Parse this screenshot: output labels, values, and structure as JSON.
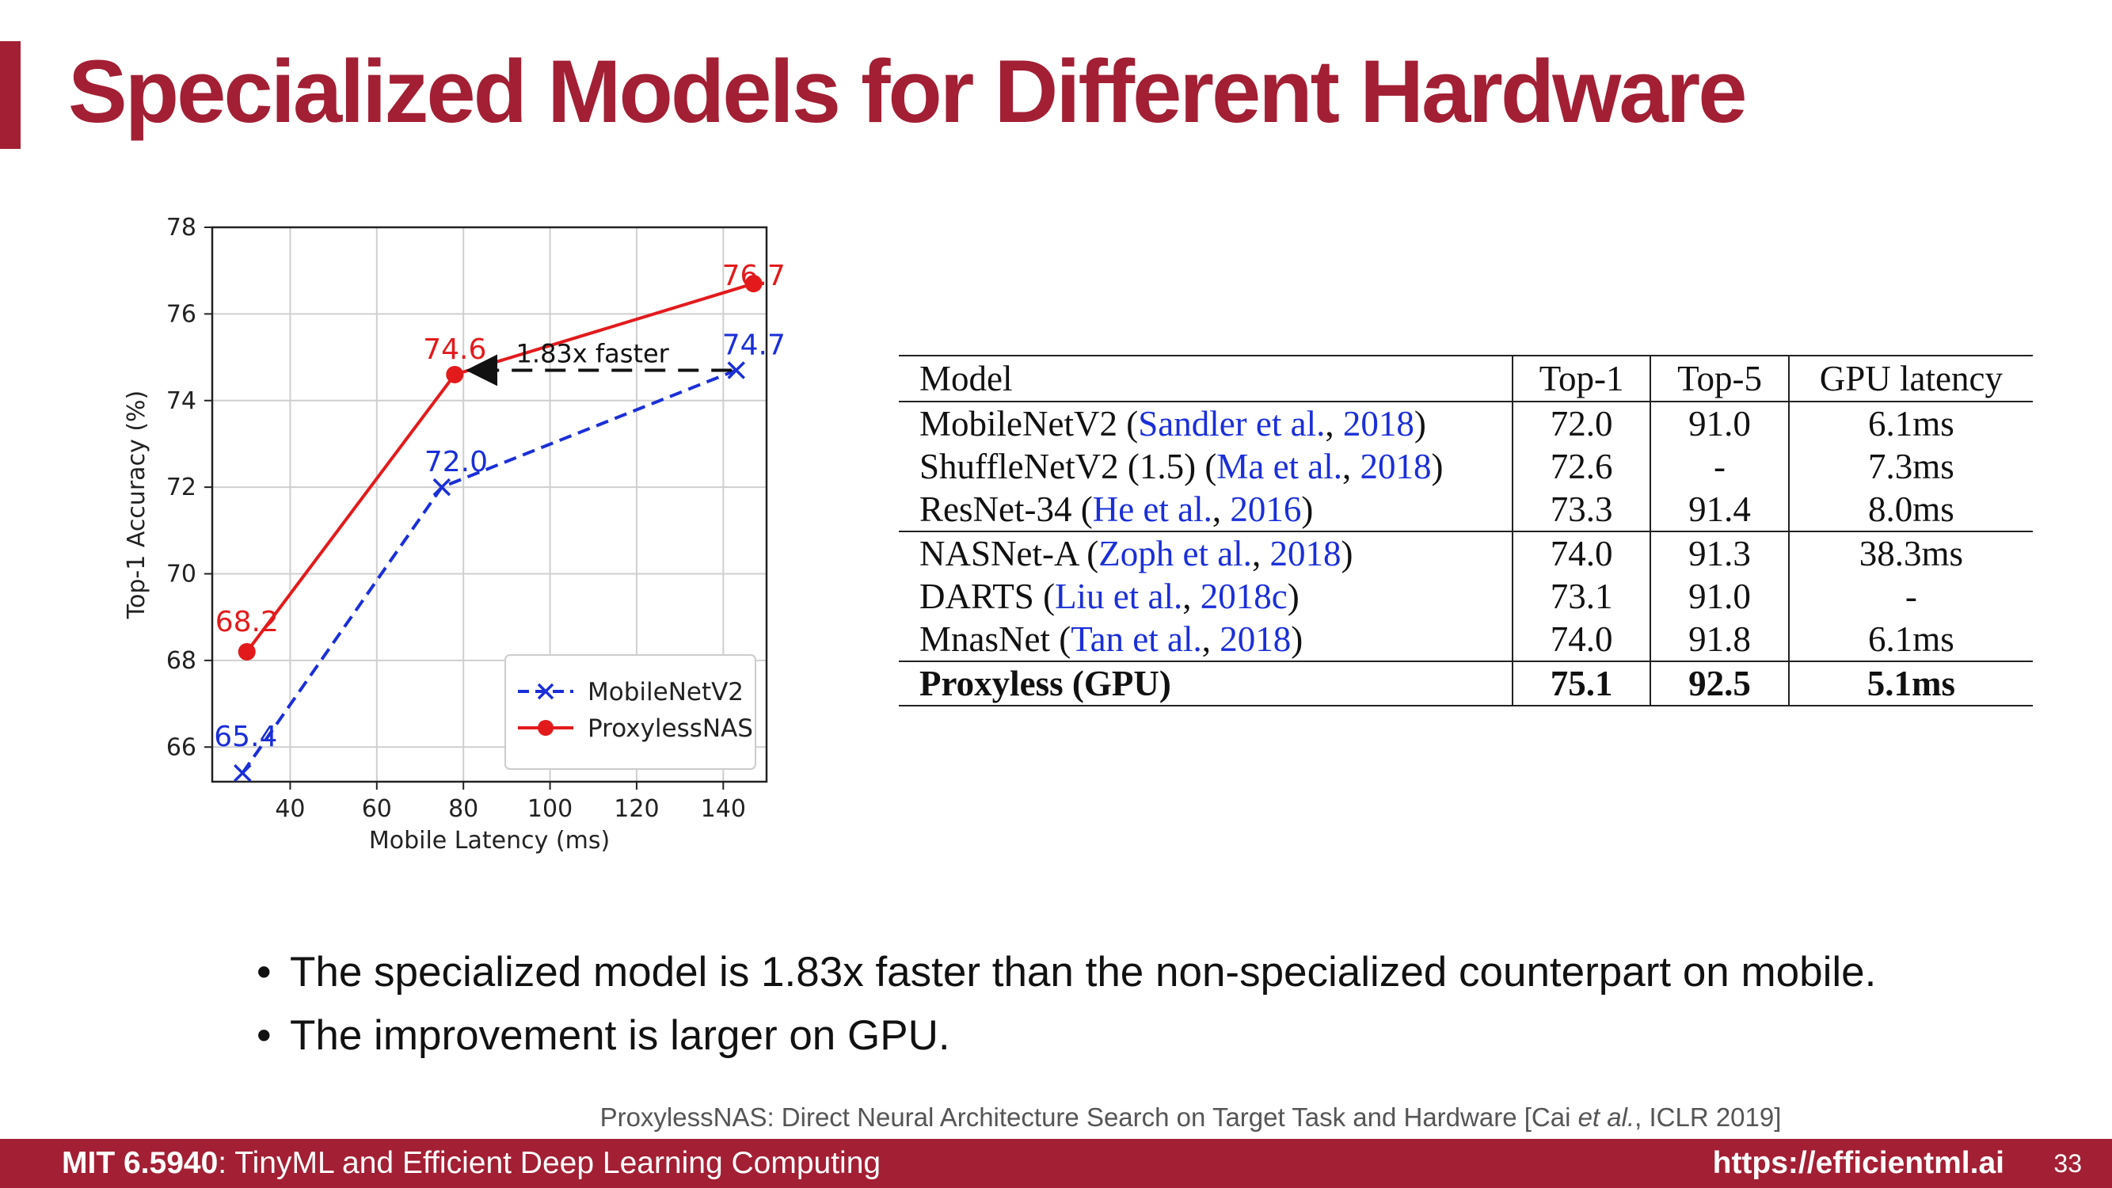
{
  "slide": {
    "title": "Specialized Models for Different Hardware",
    "accent_color": "#a31f34"
  },
  "chart_data": {
    "type": "line",
    "xlabel": "Mobile Latency (ms)",
    "ylabel": "Top-1 Accuracy (%)",
    "xlim": [
      22,
      150
    ],
    "ylim": [
      65.2,
      78
    ],
    "xticks": [
      40,
      60,
      80,
      100,
      120,
      140
    ],
    "yticks": [
      66,
      68,
      70,
      72,
      74,
      76,
      78
    ],
    "grid": true,
    "legend_position": "bottom-right",
    "series": [
      {
        "name": "MobileNetV2",
        "color": "#1a2fd8",
        "line_style": "dashed",
        "marker": "x",
        "points": [
          [
            29,
            65.4
          ],
          [
            75,
            72.0
          ],
          [
            143,
            74.7
          ]
        ],
        "labels": [
          "65.4",
          "72.0",
          "74.7"
        ]
      },
      {
        "name": "ProxylessNAS",
        "color": "#e31a1c",
        "line_style": "solid",
        "marker": "circle",
        "points": [
          [
            30,
            68.2
          ],
          [
            78,
            74.6
          ],
          [
            147,
            76.7
          ]
        ],
        "labels": [
          "68.2",
          "74.6",
          "76.7"
        ]
      }
    ],
    "annotation": {
      "text": "1.83x faster",
      "from": [
        142,
        74.7
      ],
      "to": [
        82,
        74.7
      ]
    }
  },
  "table": {
    "headers": [
      "Model",
      "Top-1",
      "Top-5",
      "GPU latency"
    ],
    "rows": [
      {
        "model": "MobileNetV2 (",
        "cite": "Sandler et al.",
        "sep": ", ",
        "year": "2018",
        "close": ")",
        "top1": "72.0",
        "top5": "91.0",
        "latency": "6.1ms",
        "group_start": false,
        "bold": false
      },
      {
        "model": "ShuffleNetV2 (1.5) (",
        "cite": "Ma et al.",
        "sep": ", ",
        "year": "2018",
        "close": ")",
        "top1": "72.6",
        "top5": "-",
        "latency": "7.3ms",
        "group_start": false,
        "bold": false
      },
      {
        "model": "ResNet-34 (",
        "cite": "He et al.",
        "sep": ", ",
        "year": "2016",
        "close": ")",
        "top1": "73.3",
        "top5": "91.4",
        "latency": "8.0ms",
        "group_start": false,
        "bold": false
      },
      {
        "model": "NASNet-A (",
        "cite": "Zoph et al.",
        "sep": ", ",
        "year": "2018",
        "close": ")",
        "top1": "74.0",
        "top5": "91.3",
        "latency": "38.3ms",
        "group_start": true,
        "bold": false
      },
      {
        "model": "DARTS (",
        "cite": "Liu et al.",
        "sep": ", ",
        "year": "2018c",
        "close": ")",
        "top1": "73.1",
        "top5": "91.0",
        "latency": "-",
        "group_start": false,
        "bold": false
      },
      {
        "model": "MnasNet (",
        "cite": "Tan et al.",
        "sep": ", ",
        "year": "2018",
        "close": ")",
        "top1": "74.0",
        "top5": "91.8",
        "latency": "6.1ms",
        "group_start": false,
        "bold": false
      },
      {
        "model": "Proxyless (GPU)",
        "cite": "",
        "sep": "",
        "year": "",
        "close": "",
        "top1": "75.1",
        "top5": "92.5",
        "latency": "5.1ms",
        "group_start": true,
        "bold": true
      }
    ]
  },
  "bullets": [
    "The specialized model is 1.83x faster than the non-specialized counterpart on mobile.",
    "The improvement is larger on GPU."
  ],
  "reference": {
    "before": "ProxylessNAS: Direct Neural Architecture Search on Target Task and Hardware [Cai ",
    "italic": "et al.",
    "after": ", ICLR 2019]"
  },
  "footer": {
    "course_code": "MIT 6.5940",
    "course_title": ": TinyML and Efficient Deep Learning Computing",
    "url": "https://efficientml.ai",
    "page_number": "33"
  }
}
